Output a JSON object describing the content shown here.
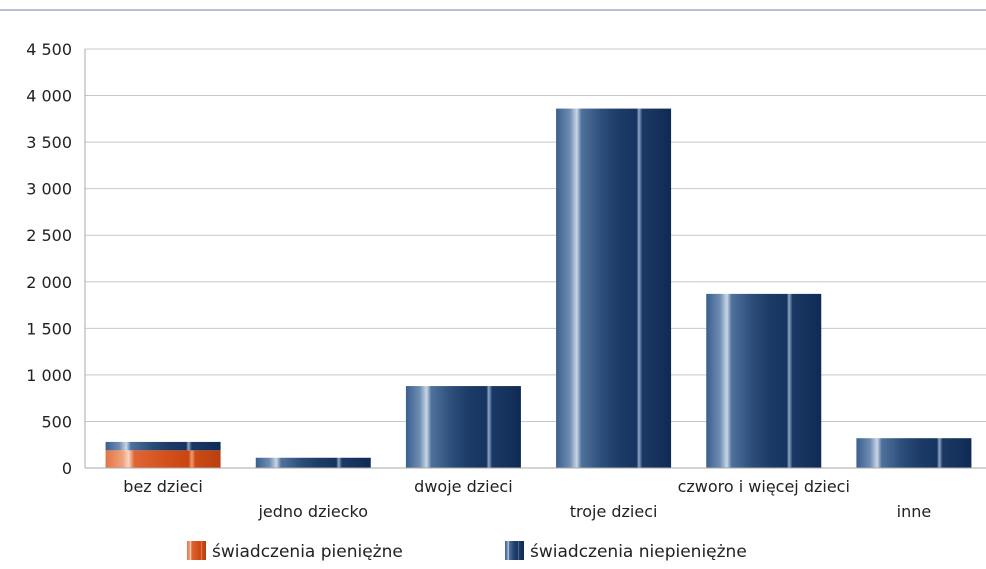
{
  "chart_data": {
    "type": "bar",
    "stacked": true,
    "categories": [
      "bez dzieci",
      "jedno dziecko",
      "dwoje dzieci",
      "troje dzieci",
      "czworo i więcej dzieci",
      "inne"
    ],
    "series": [
      {
        "name": "świadczenia pieniężne",
        "values": [
          190,
          0,
          0,
          0,
          0,
          0
        ],
        "color": "#d9531e"
      },
      {
        "name": "świadczenia niepieniężne",
        "values": [
          90,
          110,
          880,
          3860,
          1870,
          320
        ],
        "color": "#1f3f6b"
      }
    ],
    "ylim": [
      0,
      4500
    ],
    "yticks": [
      0,
      500,
      1000,
      1500,
      2000,
      2500,
      3000,
      3500,
      4000,
      4500
    ],
    "ytick_labels": [
      "0",
      "500",
      "1 000",
      "1 500",
      "2 000",
      "2 500",
      "3 000",
      "3 500",
      "4 000",
      "4 500"
    ],
    "grid": true,
    "legend_position": "bottom",
    "xlabel": "",
    "ylabel": ""
  }
}
